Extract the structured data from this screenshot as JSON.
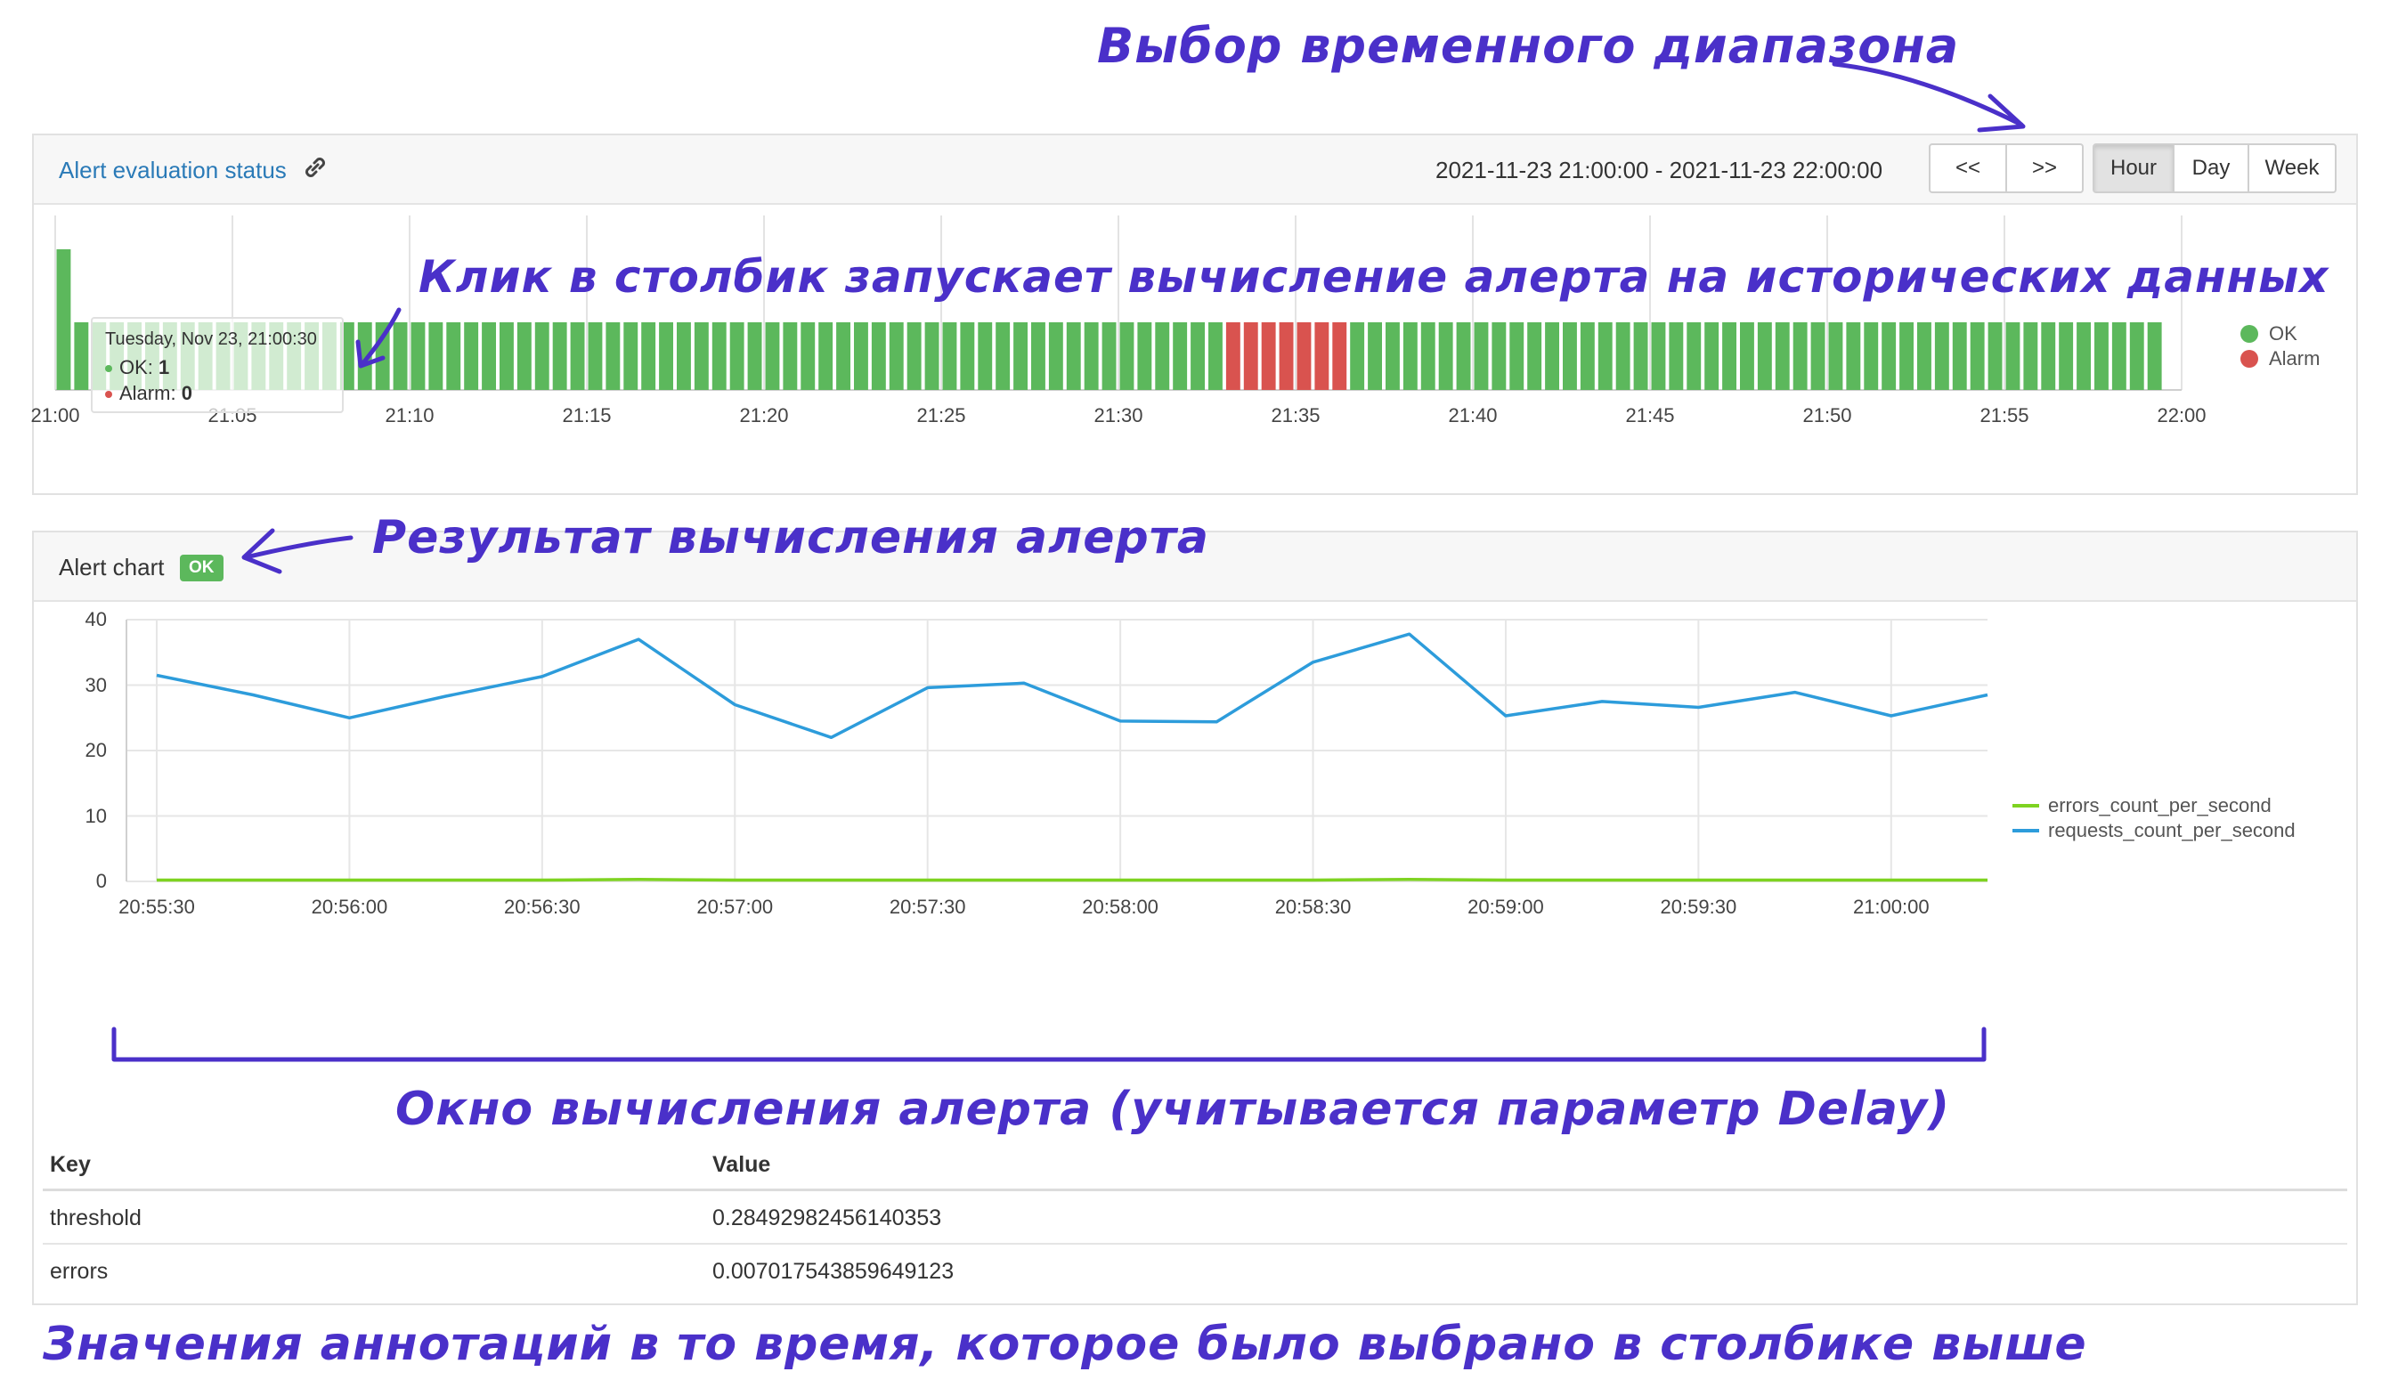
{
  "annotations": {
    "time_range": "Выбор временного диапазона",
    "click_column": "Клик в столбик запускает вычисление алерта на исторических данных",
    "result": "Результат вычисления алерта",
    "window": "Окно вычисления алерта (учитывается параметр Delay)",
    "values": "Значения аннотаций в то время, которое было выбрано в столбике выше"
  },
  "status_panel": {
    "title": "Alert evaluation status",
    "link_icon": "link-icon",
    "range": "2021-11-23 21:00:00 - 2021-11-23 22:00:00",
    "prev_label": "<<",
    "next_label": ">>",
    "range_buttons": [
      "Hour",
      "Day",
      "Week"
    ],
    "active_range": "Hour",
    "x_ticks": [
      "21:00",
      "21:05",
      "21:10",
      "21:15",
      "21:20",
      "21:25",
      "21:30",
      "21:35",
      "21:40",
      "21:45",
      "21:50",
      "21:55",
      "22:00"
    ],
    "legend": [
      {
        "label": "OK",
        "color": "#5cb85c"
      },
      {
        "label": "Alarm",
        "color": "#d9534f"
      }
    ],
    "tooltip": {
      "date": "Tuesday, Nov 23, 21:00:30",
      "ok_label": "OK:",
      "ok_value": "1",
      "alarm_label": "Alarm:",
      "alarm_value": "0"
    },
    "bar_series": {
      "bar_count": 119,
      "highlighted_bar_index": 0,
      "alarm_bar_indices": [
        66,
        67,
        68,
        69,
        70,
        71,
        72
      ],
      "ok_color": "#5cb85c",
      "alarm_color": "#d9534f"
    }
  },
  "alert_chart": {
    "title": "Alert chart",
    "status_badge": "OK",
    "badge_color": "#5cb85c"
  },
  "chart_data": {
    "type": "line",
    "x": [
      "20:55:30",
      "20:55:45",
      "20:56:00",
      "20:56:15",
      "20:56:30",
      "20:56:45",
      "20:57:00",
      "20:57:15",
      "20:57:30",
      "20:57:45",
      "20:58:00",
      "20:58:15",
      "20:58:30",
      "20:58:45",
      "20:59:00",
      "20:59:15",
      "20:59:30",
      "20:59:45",
      "21:00:00",
      "21:00:15"
    ],
    "x_ticks": [
      "20:55:30",
      "20:56:00",
      "20:56:30",
      "20:57:00",
      "20:57:30",
      "20:58:00",
      "20:58:30",
      "20:59:00",
      "20:59:30",
      "21:00:00"
    ],
    "ylim": [
      0,
      40
    ],
    "y_ticks": [
      "0",
      "10",
      "20",
      "30",
      "40"
    ],
    "grid": true,
    "legend_position": "right",
    "series": [
      {
        "name": "errors_count_per_second",
        "color": "#7ed321",
        "values": [
          0.2,
          0.2,
          0.2,
          0.2,
          0.2,
          0.3,
          0.2,
          0.2,
          0.2,
          0.2,
          0.2,
          0.2,
          0.2,
          0.3,
          0.2,
          0.2,
          0.2,
          0.2,
          0.2,
          0.2
        ]
      },
      {
        "name": "requests_count_per_second",
        "color": "#2d9cdb",
        "values": [
          31.5,
          28.5,
          25.0,
          28.3,
          31.3,
          37.0,
          27.0,
          22.0,
          29.6,
          30.3,
          24.5,
          24.4,
          33.5,
          37.8,
          25.3,
          27.5,
          26.6,
          28.9,
          25.3,
          28.5
        ]
      }
    ]
  },
  "kv_table": {
    "headers": {
      "key": "Key",
      "value": "Value"
    },
    "rows": [
      {
        "key": "threshold",
        "value": "0.28492982456140353"
      },
      {
        "key": "errors",
        "value": "0.007017543859649123"
      }
    ]
  }
}
